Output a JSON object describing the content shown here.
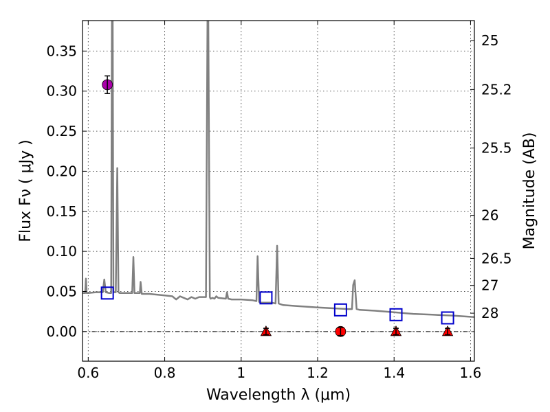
{
  "chart_data": {
    "type": "scatter",
    "title": "",
    "xlabel": "Wavelength  λ (μm)",
    "ylabel": "Flux  Fν  ( μJy )",
    "y2label": "Magnitude (AB)",
    "xlim": [
      0.585,
      1.61
    ],
    "ylim": [
      -0.037,
      0.388
    ],
    "xticks": [
      0.6,
      0.8,
      1.0,
      1.2,
      1.4,
      1.6
    ],
    "xtick_labels": [
      "0.6",
      "0.8",
      "1",
      "1.2",
      "1.4",
      "1.6"
    ],
    "yticks": [
      0.0,
      0.05,
      0.1,
      0.15,
      0.2,
      0.25,
      0.3,
      0.35
    ],
    "ytick_labels": [
      "0.00",
      "0.05",
      "0.10",
      "0.15",
      "0.20",
      "0.25",
      "0.30",
      "0.35"
    ],
    "y2ticks": [
      {
        "label": "25",
        "flux": 0.363
      },
      {
        "label": "25.2",
        "flux": 0.302
      },
      {
        "label": "25.5",
        "flux": 0.229
      },
      {
        "label": "26",
        "flux": 0.145
      },
      {
        "label": "26.5",
        "flux": 0.0912
      },
      {
        "label": "27",
        "flux": 0.0575
      },
      {
        "label": "28",
        "flux": 0.0229
      }
    ],
    "grid": true,
    "zero_line": 0.0,
    "series": [
      {
        "kind": "line",
        "color": "#808080",
        "x": [
          0.585,
          0.592,
          0.594,
          0.596,
          0.6,
          0.62,
          0.638,
          0.642,
          0.646,
          0.655,
          0.66,
          0.662,
          0.664,
          0.666,
          0.668,
          0.672,
          0.676,
          0.679,
          0.682,
          0.69,
          0.7,
          0.715,
          0.718,
          0.721,
          0.725,
          0.735,
          0.737,
          0.74,
          0.745,
          0.76,
          0.78,
          0.8,
          0.82,
          0.83,
          0.84,
          0.85,
          0.86,
          0.87,
          0.88,
          0.89,
          0.9,
          0.908,
          0.912,
          0.914,
          0.918,
          0.92,
          0.925,
          0.93,
          0.935,
          0.94,
          0.96,
          0.963,
          0.966,
          0.975,
          1.0,
          1.03,
          1.04,
          1.043,
          1.047,
          1.052,
          1.06,
          1.08,
          1.09,
          1.094,
          1.098,
          1.103,
          1.11,
          1.14,
          1.2,
          1.28,
          1.29,
          1.293,
          1.297,
          1.302,
          1.31,
          1.35,
          1.4,
          1.45,
          1.5,
          1.55,
          1.61
        ],
        "y": [
          0.048,
          0.048,
          0.066,
          0.048,
          0.048,
          0.049,
          0.049,
          0.065,
          0.049,
          0.048,
          0.048,
          0.388,
          0.388,
          0.049,
          0.049,
          0.049,
          0.204,
          0.049,
          0.048,
          0.048,
          0.048,
          0.048,
          0.093,
          0.048,
          0.048,
          0.048,
          0.062,
          0.047,
          0.047,
          0.047,
          0.046,
          0.045,
          0.044,
          0.04,
          0.044,
          0.042,
          0.04,
          0.043,
          0.041,
          0.043,
          0.043,
          0.043,
          0.388,
          0.388,
          0.043,
          0.041,
          0.042,
          0.041,
          0.044,
          0.042,
          0.041,
          0.049,
          0.041,
          0.04,
          0.04,
          0.039,
          0.038,
          0.094,
          0.037,
          0.036,
          0.036,
          0.036,
          0.035,
          0.107,
          0.035,
          0.034,
          0.033,
          0.032,
          0.03,
          0.028,
          0.028,
          0.058,
          0.064,
          0.028,
          0.027,
          0.026,
          0.024,
          0.022,
          0.021,
          0.02,
          0.018
        ]
      },
      {
        "kind": "open-square",
        "color": "#0000cc",
        "x": [
          0.65,
          1.065,
          1.26,
          1.405,
          1.54
        ],
        "y": [
          0.048,
          0.042,
          0.027,
          0.021,
          0.017
        ]
      },
      {
        "kind": "circle",
        "color": "#aa00aa",
        "x": [
          0.65
        ],
        "y": [
          0.308
        ],
        "yerr": [
          0.011
        ]
      },
      {
        "kind": "circle",
        "color": "#ff0000",
        "x": [
          1.26
        ],
        "y": [
          0.0
        ],
        "yerr": [
          0.005
        ]
      },
      {
        "kind": "triangle",
        "color": "#ff0000",
        "x": [
          1.065,
          1.405,
          1.54
        ],
        "y": [
          0.0,
          0.0,
          0.0
        ],
        "yerr": [
          0.004,
          0.004,
          0.004
        ]
      }
    ]
  }
}
